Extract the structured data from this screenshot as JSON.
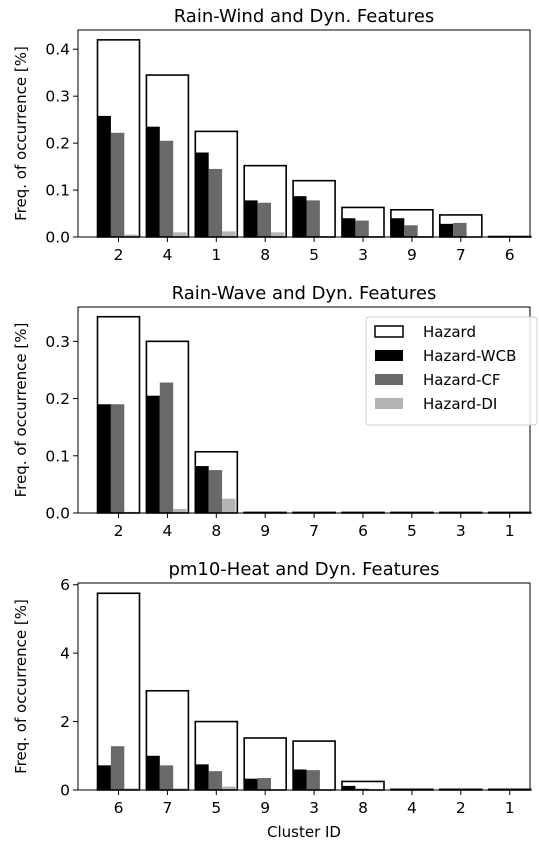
{
  "colors": {
    "hazard_fill": "#ffffff",
    "hazard_edge": "#000000",
    "wcb": "#000000",
    "cf": "#696969",
    "di": "#b4b4b4"
  },
  "chart_data": [
    {
      "type": "bar",
      "title": "Rain-Wind and Dyn. Features",
      "ylabel": "Freq. of occurrence [%]",
      "xlabel": "",
      "categories": [
        "2",
        "4",
        "1",
        "8",
        "5",
        "3",
        "9",
        "7",
        "6"
      ],
      "ylim": [
        0,
        0.441
      ],
      "yticks": [
        0.0,
        0.1,
        0.2,
        0.3,
        0.4
      ],
      "ytick_labels": [
        "0.0",
        "0.1",
        "0.2",
        "0.3",
        "0.4"
      ],
      "series": [
        {
          "name": "Hazard",
          "style": "outline",
          "values": [
            0.42,
            0.345,
            0.225,
            0.152,
            0.12,
            0.063,
            0.058,
            0.047,
            0.001
          ]
        },
        {
          "name": "Hazard-WCB",
          "values": [
            0.258,
            0.235,
            0.18,
            0.078,
            0.087,
            0.04,
            0.04,
            0.028,
            0.0
          ]
        },
        {
          "name": "Hazard-CF",
          "values": [
            0.222,
            0.205,
            0.145,
            0.073,
            0.078,
            0.035,
            0.025,
            0.03,
            0.0
          ]
        },
        {
          "name": "Hazard-DI",
          "values": [
            0.005,
            0.01,
            0.012,
            0.01,
            0.002,
            0.002,
            0.002,
            0.0,
            0.0
          ]
        }
      ]
    },
    {
      "type": "bar",
      "title": "Rain-Wave and Dyn. Features",
      "ylabel": "Freq. of occurrence [%]",
      "xlabel": "",
      "categories": [
        "2",
        "4",
        "8",
        "9",
        "7",
        "6",
        "5",
        "3",
        "1"
      ],
      "ylim": [
        0,
        0.36
      ],
      "yticks": [
        0.0,
        0.1,
        0.2,
        0.3
      ],
      "ytick_labels": [
        "0.0",
        "0.1",
        "0.2",
        "0.3"
      ],
      "legend_position": "top-right",
      "series": [
        {
          "name": "Hazard",
          "style": "outline",
          "values": [
            0.343,
            0.3,
            0.107,
            0.001,
            0.001,
            0.001,
            0.001,
            0.001,
            0.001
          ]
        },
        {
          "name": "Hazard-WCB",
          "values": [
            0.19,
            0.205,
            0.082,
            0.0,
            0.0,
            0.0,
            0.0,
            0.0,
            0.0
          ]
        },
        {
          "name": "Hazard-CF",
          "values": [
            0.19,
            0.228,
            0.075,
            0.0,
            0.0,
            0.0,
            0.0,
            0.0,
            0.0
          ]
        },
        {
          "name": "Hazard-DI",
          "values": [
            0.002,
            0.007,
            0.025,
            0.0,
            0.0,
            0.0,
            0.0,
            0.0,
            0.0
          ]
        }
      ]
    },
    {
      "type": "bar",
      "title": "pm10-Heat and Dyn. Features",
      "ylabel": "Freq. of occurrence [%]",
      "xlabel": "Cluster ID",
      "categories": [
        "6",
        "7",
        "5",
        "9",
        "3",
        "8",
        "4",
        "2",
        "1"
      ],
      "ylim": [
        0,
        6.05
      ],
      "yticks": [
        0,
        2,
        4,
        6
      ],
      "ytick_labels": [
        "0",
        "2",
        "4",
        "6"
      ],
      "series": [
        {
          "name": "Hazard",
          "style": "outline",
          "values": [
            5.75,
            2.9,
            2.0,
            1.52,
            1.43,
            0.25,
            0.02,
            0.02,
            0.02
          ]
        },
        {
          "name": "Hazard-WCB",
          "values": [
            0.72,
            1.0,
            0.75,
            0.33,
            0.6,
            0.12,
            0.0,
            0.0,
            0.0
          ]
        },
        {
          "name": "Hazard-CF",
          "values": [
            1.28,
            0.72,
            0.55,
            0.35,
            0.58,
            0.04,
            0.0,
            0.0,
            0.0
          ]
        },
        {
          "name": "Hazard-DI",
          "values": [
            0.05,
            0.05,
            0.1,
            0.02,
            0.02,
            0.0,
            0.0,
            0.0,
            0.0
          ]
        }
      ]
    }
  ]
}
